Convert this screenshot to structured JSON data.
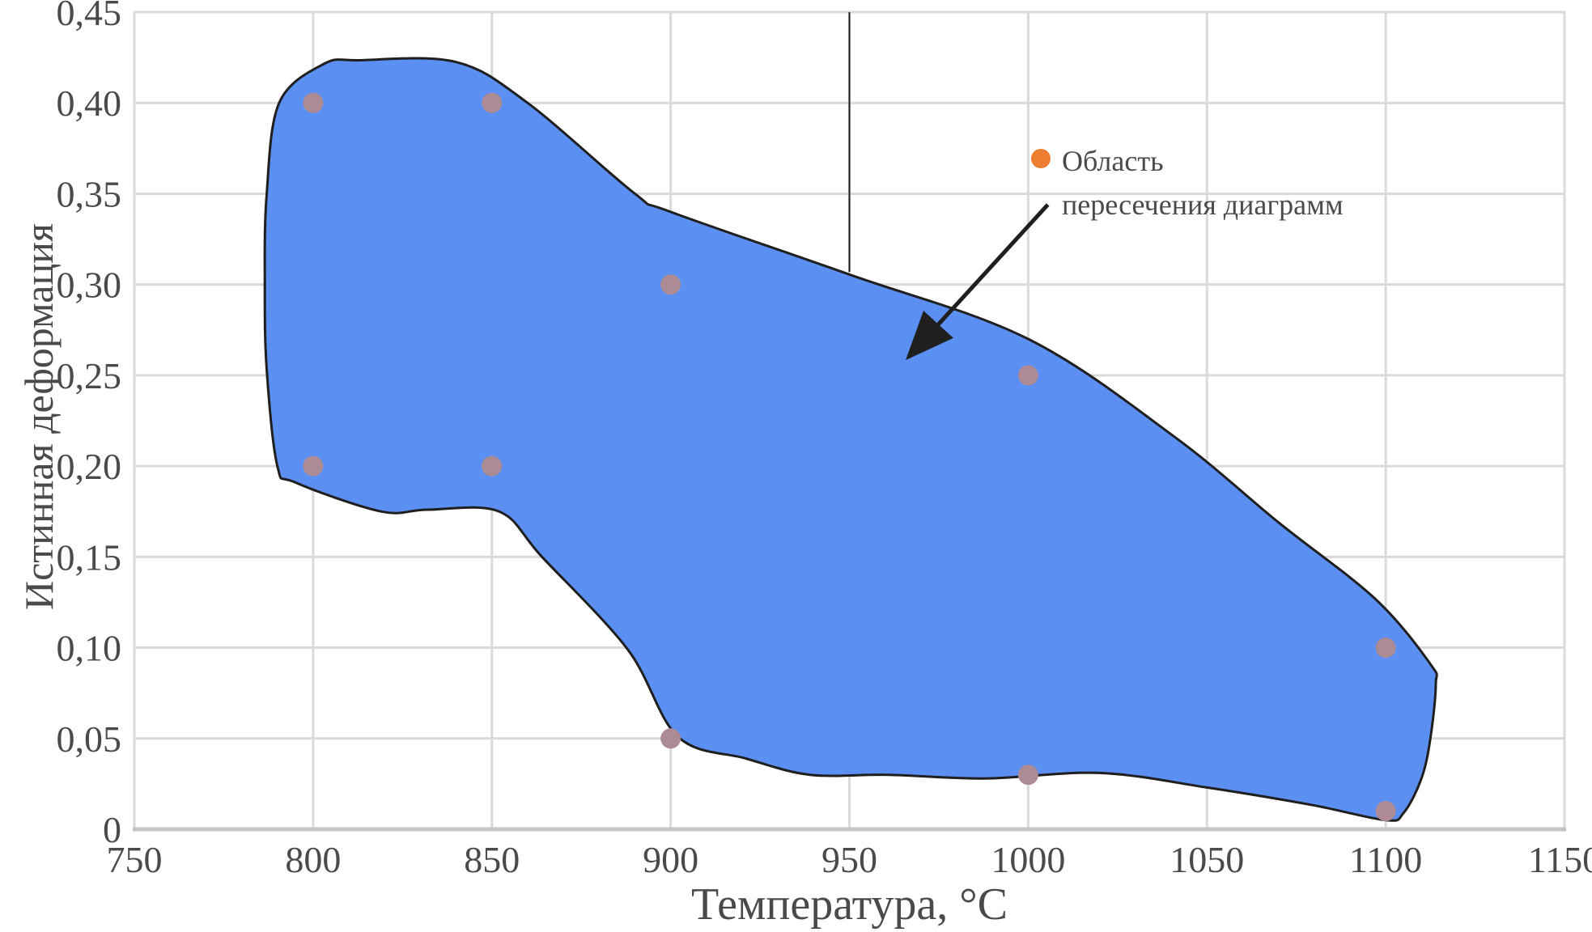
{
  "colors": {
    "text": "#4a4a4a",
    "grid": "#dadada",
    "axis_line": "#c4c4c4",
    "region_fill": "#5B8FF2",
    "region_stroke": "#1f1f1f",
    "point": "#AC8B95",
    "legend-marker": "#ED7D31",
    "arrow": "#1f1f1f"
  },
  "legend": {
    "line1": "Область",
    "line2": "пересечения диаграмм",
    "marker": "orange-dot"
  },
  "x_axis": {
    "title": "Температура, °C",
    "tick_labels": [
      "750",
      "800",
      "850",
      "900",
      "950",
      "1000",
      "1050",
      "1100",
      "1150"
    ],
    "tick_values": [
      750,
      800,
      850,
      900,
      950,
      1000,
      1050,
      1100,
      1150
    ]
  },
  "y_axis": {
    "title": "Истинная деформация",
    "tick_labels": [
      "0,45",
      "0,40",
      "0,35",
      "0,30",
      "0,25",
      "0,20",
      "0,15",
      "0,10",
      "0,05",
      "0"
    ],
    "tick_values": [
      0.45,
      0.4,
      0.35,
      0.3,
      0.25,
      0.2,
      0.15,
      0.1,
      0.05,
      0
    ]
  },
  "chart_data": {
    "type": "area",
    "title": "",
    "xlabel": "Температура, °C",
    "ylabel": "Истинная деформация",
    "xlim": [
      750,
      1150
    ],
    "ylim": [
      0,
      0.45
    ],
    "grid": true,
    "legend_position": "upper-right-inside",
    "points": [
      [
        800,
        0.4
      ],
      [
        850,
        0.4
      ],
      [
        900,
        0.3
      ],
      [
        1000,
        0.25
      ],
      [
        800,
        0.2
      ],
      [
        850,
        0.2
      ],
      [
        1100,
        0.1
      ],
      [
        900,
        0.05
      ],
      [
        1000,
        0.03
      ],
      [
        1100,
        0.01
      ]
    ],
    "region_outline": [
      [
        790,
        0.2
      ],
      [
        787,
        0.254
      ],
      [
        786.5,
        0.3
      ],
      [
        787,
        0.349
      ],
      [
        790.5,
        0.4
      ],
      [
        803,
        0.4215
      ],
      [
        813,
        0.4235
      ],
      [
        840,
        0.4225
      ],
      [
        860,
        0.4
      ],
      [
        890,
        0.35
      ],
      [
        900,
        0.34
      ],
      [
        950,
        0.3055
      ],
      [
        1000,
        0.27
      ],
      [
        1041,
        0.216
      ],
      [
        1070,
        0.169
      ],
      [
        1097,
        0.127
      ],
      [
        1112.5,
        0.091
      ],
      [
        1114,
        0.08
      ],
      [
        1112.5,
        0.05
      ],
      [
        1110,
        0.028
      ],
      [
        1105,
        0.009
      ],
      [
        1100,
        0.005
      ],
      [
        1079,
        0.0135
      ],
      [
        1050,
        0.023
      ],
      [
        1020,
        0.031
      ],
      [
        988,
        0.028
      ],
      [
        961,
        0.03
      ],
      [
        939,
        0.03
      ],
      [
        921,
        0.039
      ],
      [
        902,
        0.051
      ],
      [
        888,
        0.099
      ],
      [
        864,
        0.15
      ],
      [
        852,
        0.175
      ],
      [
        832,
        0.176
      ],
      [
        819,
        0.175
      ],
      [
        795,
        0.191
      ]
    ],
    "vertical_line": {
      "x": 950,
      "y_from": 0.307,
      "y_to": 0.45
    },
    "arrow": {
      "from": [
        1005.5,
        0.344
      ],
      "to": [
        966.5,
        0.26
      ]
    }
  }
}
